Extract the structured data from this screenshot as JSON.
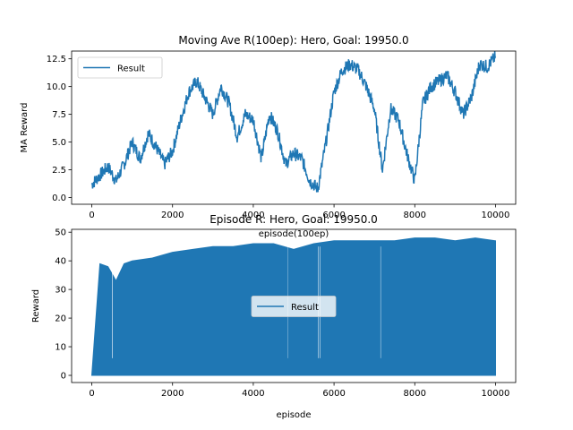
{
  "chart_data": [
    {
      "type": "line",
      "title": "Moving Ave R(100ep): Hero, Goal: 19950.0",
      "xlabel": "episode(100ep)",
      "ylabel": "MA Reward",
      "xlim": [
        -500,
        10500
      ],
      "ylim": [
        -0.6,
        13.2
      ],
      "xticks": [
        0,
        2000,
        4000,
        6000,
        8000,
        10000
      ],
      "yticks": [
        0.0,
        2.5,
        5.0,
        7.5,
        10.0,
        12.5
      ],
      "ytick_labels": [
        "0.0",
        "2.5",
        "5.0",
        "7.5",
        "10.0",
        "12.5"
      ],
      "legend": {
        "entries": [
          "Result"
        ],
        "placement": "upper-left"
      },
      "grid": false,
      "series": [
        {
          "name": "Result",
          "color": "#1f77b4",
          "x": [
            0,
            200,
            400,
            600,
            800,
            1000,
            1200,
            1400,
            1600,
            1800,
            2000,
            2200,
            2400,
            2600,
            2800,
            3000,
            3200,
            3400,
            3600,
            3800,
            4000,
            4200,
            4400,
            4600,
            4800,
            5000,
            5200,
            5400,
            5600,
            5800,
            6000,
            6200,
            6400,
            6600,
            6800,
            7000,
            7200,
            7400,
            7600,
            7800,
            8000,
            8200,
            8400,
            8600,
            8800,
            9000,
            9200,
            9400,
            9600,
            9800,
            10000
          ],
          "y": [
            1.2,
            2.0,
            2.8,
            1.5,
            3.0,
            5.0,
            3.5,
            5.8,
            4.5,
            3.0,
            4.2,
            7.0,
            9.5,
            10.5,
            9.0,
            7.5,
            10.0,
            8.5,
            5.5,
            7.5,
            7.0,
            3.5,
            7.5,
            6.0,
            3.0,
            4.0,
            3.5,
            1.5,
            0.8,
            5.0,
            9.5,
            11.5,
            12.0,
            11.5,
            10.0,
            8.0,
            2.5,
            8.0,
            7.0,
            4.0,
            1.5,
            8.5,
            10.0,
            10.5,
            11.0,
            9.5,
            7.5,
            9.0,
            12.0,
            11.8,
            12.7
          ]
        }
      ]
    },
    {
      "type": "line",
      "title": "Episode R: Hero, Goal: 19950.0",
      "xlabel": "episode",
      "ylabel": "Reward",
      "xlim": [
        -500,
        10500
      ],
      "ylim": [
        -2.5,
        51
      ],
      "xticks": [
        0,
        2000,
        4000,
        6000,
        8000,
        10000
      ],
      "yticks": [
        0,
        10,
        20,
        30,
        40,
        50
      ],
      "legend": {
        "entries": [
          "Result"
        ],
        "placement": "center"
      },
      "grid": false,
      "series": [
        {
          "name": "Result",
          "color": "#1f77b4",
          "x": [
            0,
            200,
            400,
            600,
            800,
            1000,
            1500,
            2000,
            2500,
            3000,
            3500,
            4000,
            4500,
            5000,
            5500,
            6000,
            6500,
            7000,
            7500,
            8000,
            8500,
            9000,
            9500,
            10000
          ],
          "y_max": [
            0,
            39,
            38,
            33,
            39,
            40,
            41,
            43,
            44,
            45,
            45,
            46,
            46,
            44,
            46,
            47,
            47,
            47,
            47,
            48,
            48,
            47,
            48,
            47
          ],
          "y_min": [
            0,
            0,
            0,
            0,
            0,
            0,
            0,
            0,
            0,
            0,
            0,
            0,
            0,
            0,
            0,
            0,
            0,
            0,
            0,
            0,
            0,
            0,
            0,
            0
          ]
        }
      ]
    }
  ]
}
